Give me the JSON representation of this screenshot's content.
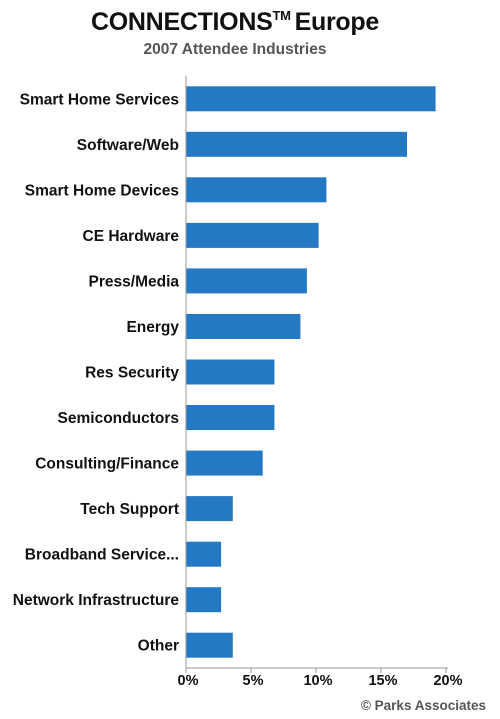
{
  "header": {
    "title": "CONNECTIONS",
    "title_tm": "TM",
    "title_suffix": "Europe",
    "subtitle": "2007 Attendee Industries"
  },
  "footer": {
    "source": "© Parks Associates"
  },
  "chart_data": {
    "type": "bar",
    "orientation": "horizontal",
    "title": "CONNECTIONS™ Europe",
    "subtitle": "2007 Attendee Industries",
    "categories": [
      "Smart Home Services",
      "Software/Web",
      "Smart Home Devices",
      "CE Hardware",
      "Press/Media",
      "Energy",
      "Res Security",
      "Semiconductors",
      "Consulting/Finance",
      "Tech Support",
      "Broadband Service...",
      "Network Infrastructure",
      "Other"
    ],
    "values": [
      19.2,
      17.0,
      10.8,
      10.2,
      9.3,
      8.8,
      6.8,
      6.8,
      5.9,
      3.6,
      2.7,
      2.7,
      3.6
    ],
    "unit": "%",
    "xlim": [
      0,
      20
    ],
    "xticks": [
      0,
      5,
      10,
      15,
      20
    ],
    "xtick_labels": [
      "0%",
      "5%",
      "10%",
      "15%",
      "20%"
    ],
    "bar_color": "#2478C4",
    "axis_color": "#999999",
    "grid": false,
    "legend": "none"
  }
}
